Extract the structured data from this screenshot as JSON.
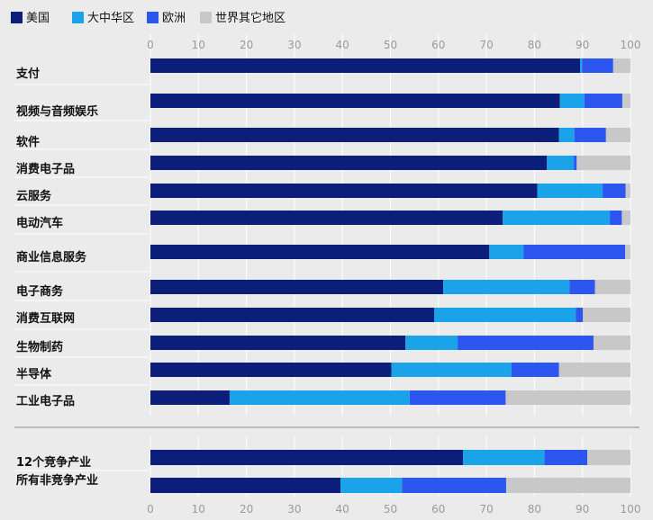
{
  "chart_data": [
    {
      "type": "bar",
      "orientation": "horizontal",
      "stacked": true,
      "legend_position": "top-left",
      "xlim": [
        0,
        100
      ],
      "xticks": [
        0,
        10,
        20,
        30,
        40,
        50,
        60,
        70,
        80,
        90,
        100
      ],
      "grid": true,
      "categories": [
        "支付",
        "视频与音频娱乐",
        "软件",
        "消费电子品",
        "云服务",
        "电动汽车",
        "商业信息服务",
        "电子商务",
        "消费互联网",
        "生物制药",
        "半导体",
        "工业电子品"
      ],
      "series": [
        {
          "name": "美国",
          "color": "#0b1f7a",
          "values": [
            89.5,
            85.3,
            85.1,
            82.6,
            80.6,
            73.4,
            70.6,
            61.0,
            59.1,
            53.1,
            50.2,
            16.5
          ]
        },
        {
          "name": "大中华区",
          "color": "#1aa3e8",
          "values": [
            0.4,
            5.1,
            3.2,
            5.6,
            13.6,
            22.3,
            7.1,
            26.3,
            29.5,
            10.9,
            25.0,
            37.5
          ]
        },
        {
          "name": "欧洲",
          "color": "#2d55f0",
          "values": [
            6.5,
            7.9,
            6.6,
            0.6,
            4.8,
            2.5,
            21.2,
            5.3,
            1.5,
            28.3,
            9.9,
            20.0
          ]
        },
        {
          "name": "世界其它地区",
          "color": "#c8c8c8",
          "values": [
            3.6,
            1.7,
            5.1,
            11.2,
            1.0,
            1.8,
            1.1,
            7.4,
            9.9,
            7.7,
            14.9,
            26.0
          ]
        }
      ]
    },
    {
      "type": "bar",
      "orientation": "horizontal",
      "stacked": true,
      "xlim": [
        0,
        100
      ],
      "xticks": [
        0,
        10,
        20,
        30,
        40,
        50,
        60,
        70,
        80,
        90,
        100
      ],
      "grid": true,
      "categories": [
        "12个竞争产业",
        "所有非竞争产业"
      ],
      "series": [
        {
          "name": "美国",
          "color": "#0b1f7a",
          "values": [
            65.1,
            39.6
          ]
        },
        {
          "name": "大中华区",
          "color": "#1aa3e8",
          "values": [
            17.0,
            12.8
          ]
        },
        {
          "name": "欧洲",
          "color": "#2d55f0",
          "values": [
            8.9,
            21.7
          ]
        },
        {
          "name": "世界其它地区",
          "color": "#c8c8c8",
          "values": [
            9.0,
            25.9
          ]
        }
      ]
    }
  ]
}
